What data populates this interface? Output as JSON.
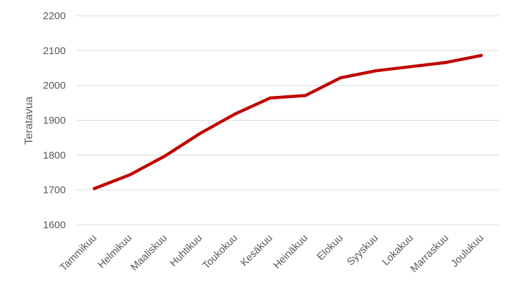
{
  "chart_data": {
    "type": "line",
    "title": "",
    "xlabel": "",
    "ylabel": "Teratavua",
    "categories": [
      "Tammikuu",
      "Helmikuu",
      "Maaliskuu",
      "Huhtikuu",
      "Toukokuu",
      "Kesäkuu",
      "Heinäkuu",
      "Elokuu",
      "Syyskuu",
      "Lokakuu",
      "Marraskuu",
      "Joulukuu"
    ],
    "series": [
      {
        "values": [
          1704,
          1743,
          1797,
          1862,
          1918,
          1964,
          1971,
          2022,
          2042,
          2054,
          2066,
          2086
        ]
      }
    ],
    "ylim": [
      1600,
      2200
    ],
    "yticks": [
      1600,
      1700,
      1800,
      1900,
      2000,
      2100,
      2200
    ],
    "grid": true,
    "legend": "none",
    "colors": {
      "line": "#c00000",
      "grid": "#d9d9d9",
      "text": "#595959"
    }
  }
}
